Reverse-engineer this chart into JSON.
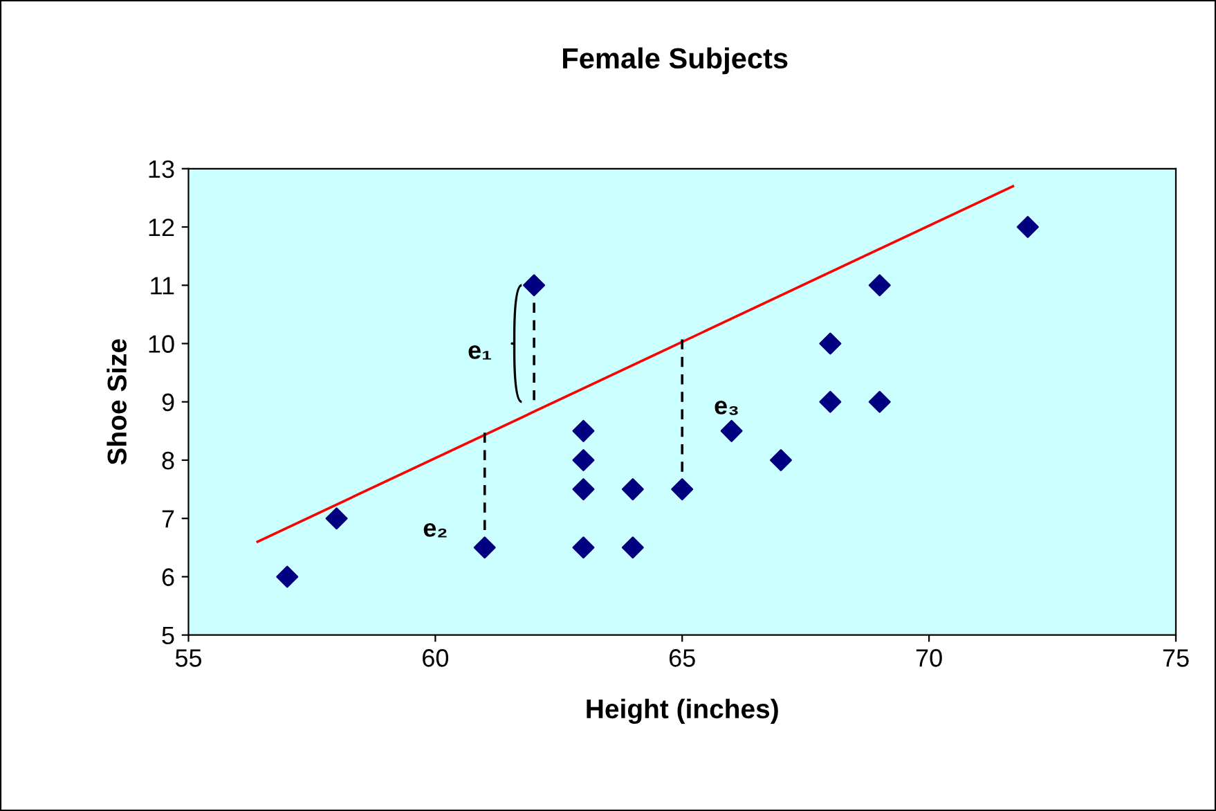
{
  "chart_data": {
    "type": "scatter",
    "title": "Female Subjects",
    "xlabel": "Height (inches)",
    "ylabel": "Shoe Size",
    "xlim": [
      55,
      75
    ],
    "xticks": [
      55,
      60,
      65,
      70,
      75
    ],
    "ylim": [
      5,
      13
    ],
    "yticks": [
      5,
      6,
      7,
      8,
      9,
      10,
      11,
      12,
      13
    ],
    "grid": false,
    "legend": false,
    "marker": "diamond",
    "series": [
      {
        "color": "#000080",
        "x": [
          57,
          58,
          61,
          62,
          63,
          63,
          63,
          63,
          64,
          64,
          65,
          66,
          67,
          68,
          68,
          69,
          69,
          72
        ],
        "values": [
          6,
          7,
          6.5,
          11,
          8.5,
          8,
          7.5,
          6.5,
          7.5,
          6.5,
          7.5,
          8.5,
          8,
          10,
          9,
          11,
          9,
          12
        ]
      },
      {
        "type": "line",
        "color": "#ff0000",
        "marker": "none",
        "line_style": "solid",
        "x": [
          56.4,
          71.7
        ],
        "values": [
          6.6,
          12.7
        ]
      },
      {
        "type": "line",
        "color": "#000000",
        "marker": "none",
        "line_style": "dashed",
        "x": [
          62,
          62
        ],
        "values": [
          11,
          9.0
        ]
      },
      {
        "type": "line",
        "color": "#000000",
        "marker": "none",
        "line_style": "dashed",
        "x": [
          61,
          61
        ],
        "values": [
          6.5,
          8.5
        ]
      },
      {
        "type": "line",
        "color": "#000000",
        "marker": "none",
        "line_style": "dashed",
        "x": [
          65,
          65
        ],
        "values": [
          7.5,
          10.1
        ]
      }
    ],
    "annotations": [
      "e₁",
      "e₂",
      "e₃"
    ]
  }
}
